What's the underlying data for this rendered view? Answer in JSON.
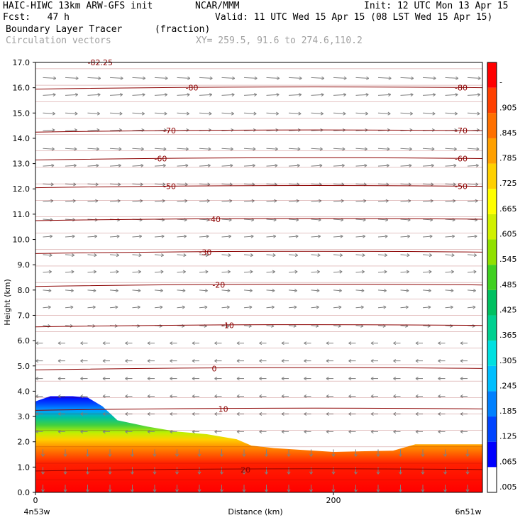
{
  "header": {
    "model": "HAIC-HIWC 13km ARW-GFS init",
    "org": "NCAR/MMM",
    "init": "Init: 12 UTC Mon 13 Apr 15",
    "fcst": "Fcst:   47 h",
    "valid": "Valid: 11 UTC Wed 15 Apr 15 (08 LST Wed 15 Apr 15)",
    "field": "Boundary Layer Tracer",
    "units": "(fraction)",
    "overlay": "Circulation vectors",
    "xy": "XY= 259.5, 91.6 to 274.6,110.2"
  },
  "chart_data": {
    "type": "heatmap",
    "title": "Boundary Layer Tracer (fraction)",
    "xlabel": "Distance (km)",
    "ylabel": "Height (km)",
    "xlim": [
      0,
      300
    ],
    "ylim": [
      0.0,
      17.0
    ],
    "x_ticks": [
      "0",
      "200"
    ],
    "x_end_labels": {
      "left": "4n53w",
      "right": "6n51w"
    },
    "y_ticks": [
      "0.0",
      "1.0",
      "2.0",
      "3.0",
      "4.0",
      "5.0",
      "6.0",
      "7.0",
      "8.0",
      "9.0",
      "10.0",
      "11.0",
      "12.0",
      "13.0",
      "14.0",
      "15.0",
      "16.0",
      "17.0"
    ],
    "colorbar": {
      "labels": [
        ".005",
        ".065",
        ".125",
        ".185",
        ".245",
        ".305",
        ".365",
        ".425",
        ".485",
        ".545",
        ".605",
        ".665",
        ".725",
        ".785",
        ".845",
        ".905",
        "-"
      ],
      "colors": [
        "#ffffff",
        "#0000ff",
        "#0044ff",
        "#0080ff",
        "#00bfff",
        "#00e0e0",
        "#00d090",
        "#00c060",
        "#40d020",
        "#90e000",
        "#d0f000",
        "#ffff00",
        "#ffd000",
        "#ffa000",
        "#ff7000",
        "#ff4000",
        "#ff0000"
      ]
    },
    "boundary_layer_top_km": [
      {
        "x": 0,
        "y": 3.6
      },
      {
        "x": 10,
        "y": 3.8
      },
      {
        "x": 25,
        "y": 3.8
      },
      {
        "x": 35,
        "y": 3.75
      },
      {
        "x": 45,
        "y": 3.4
      },
      {
        "x": 55,
        "y": 2.85
      },
      {
        "x": 75,
        "y": 2.6
      },
      {
        "x": 95,
        "y": 2.4
      },
      {
        "x": 115,
        "y": 2.3
      },
      {
        "x": 135,
        "y": 2.1
      },
      {
        "x": 145,
        "y": 1.85
      },
      {
        "x": 160,
        "y": 1.75
      },
      {
        "x": 200,
        "y": 1.6
      },
      {
        "x": 240,
        "y": 1.65
      },
      {
        "x": 255,
        "y": 1.9
      },
      {
        "x": 275,
        "y": 1.9
      },
      {
        "x": 300,
        "y": 1.9
      }
    ],
    "temperature_contours_C": [
      {
        "value": "-80",
        "height_km": 16.0
      },
      {
        "value": "-70",
        "height_km": 14.3
      },
      {
        "value": "-60",
        "height_km": 13.2
      },
      {
        "value": "-50",
        "height_km": 12.1
      },
      {
        "value": "-40",
        "height_km": 10.8
      },
      {
        "value": "-30",
        "height_km": 9.5
      },
      {
        "value": "-20",
        "height_km": 8.2
      },
      {
        "value": "-10",
        "height_km": 6.6
      },
      {
        "value": "0",
        "height_km": 4.9
      },
      {
        "value": "10",
        "height_km": 3.3
      },
      {
        "value": "20",
        "height_km": 0.9
      }
    ],
    "top_label": "-82.25"
  }
}
